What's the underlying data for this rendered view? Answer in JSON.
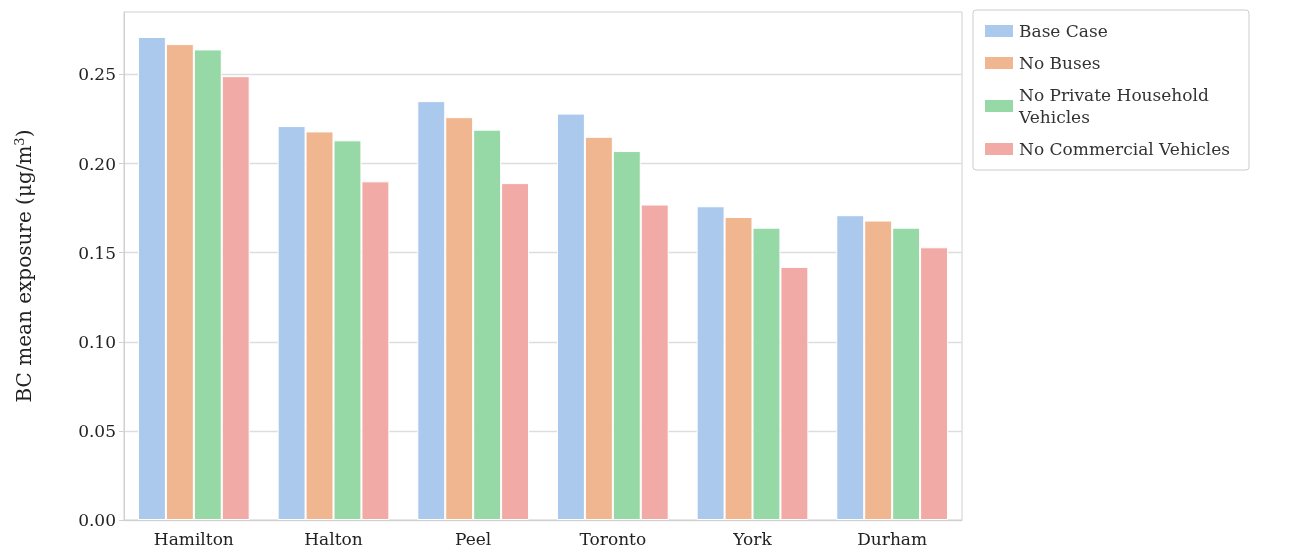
{
  "chart_data": {
    "type": "bar",
    "ylabel": "BC mean exposure (μg/m$^{3}$)",
    "categories": [
      "Hamilton",
      "Halton",
      "Peel",
      "Toronto",
      "York",
      "Durham"
    ],
    "series": [
      {
        "name": "Base Case",
        "color": "#abc9ec",
        "values": [
          0.271,
          0.221,
          0.235,
          0.228,
          0.176,
          0.171
        ]
      },
      {
        "name": "No Buses",
        "color": "#f0b68f",
        "values": [
          0.267,
          0.218,
          0.226,
          0.215,
          0.17,
          0.168
        ]
      },
      {
        "name": "No Private Household Vehicles",
        "color": "#97d9a6",
        "values": [
          0.264,
          0.213,
          0.219,
          0.207,
          0.164,
          0.164
        ]
      },
      {
        "name": "No Commercial Vehicles",
        "color": "#f2aaa7",
        "values": [
          0.249,
          0.19,
          0.189,
          0.177,
          0.142,
          0.153
        ]
      }
    ],
    "ylim": [
      0,
      0.285
    ],
    "yticks": [
      {
        "value": 0,
        "label": "0.00"
      },
      0.05,
      {
        "value": 0.1,
        "label": "0.10"
      },
      0.15,
      {
        "value": 0.2,
        "label": "0.20"
      },
      0.25
    ],
    "grid": "y",
    "legend": "top right"
  }
}
